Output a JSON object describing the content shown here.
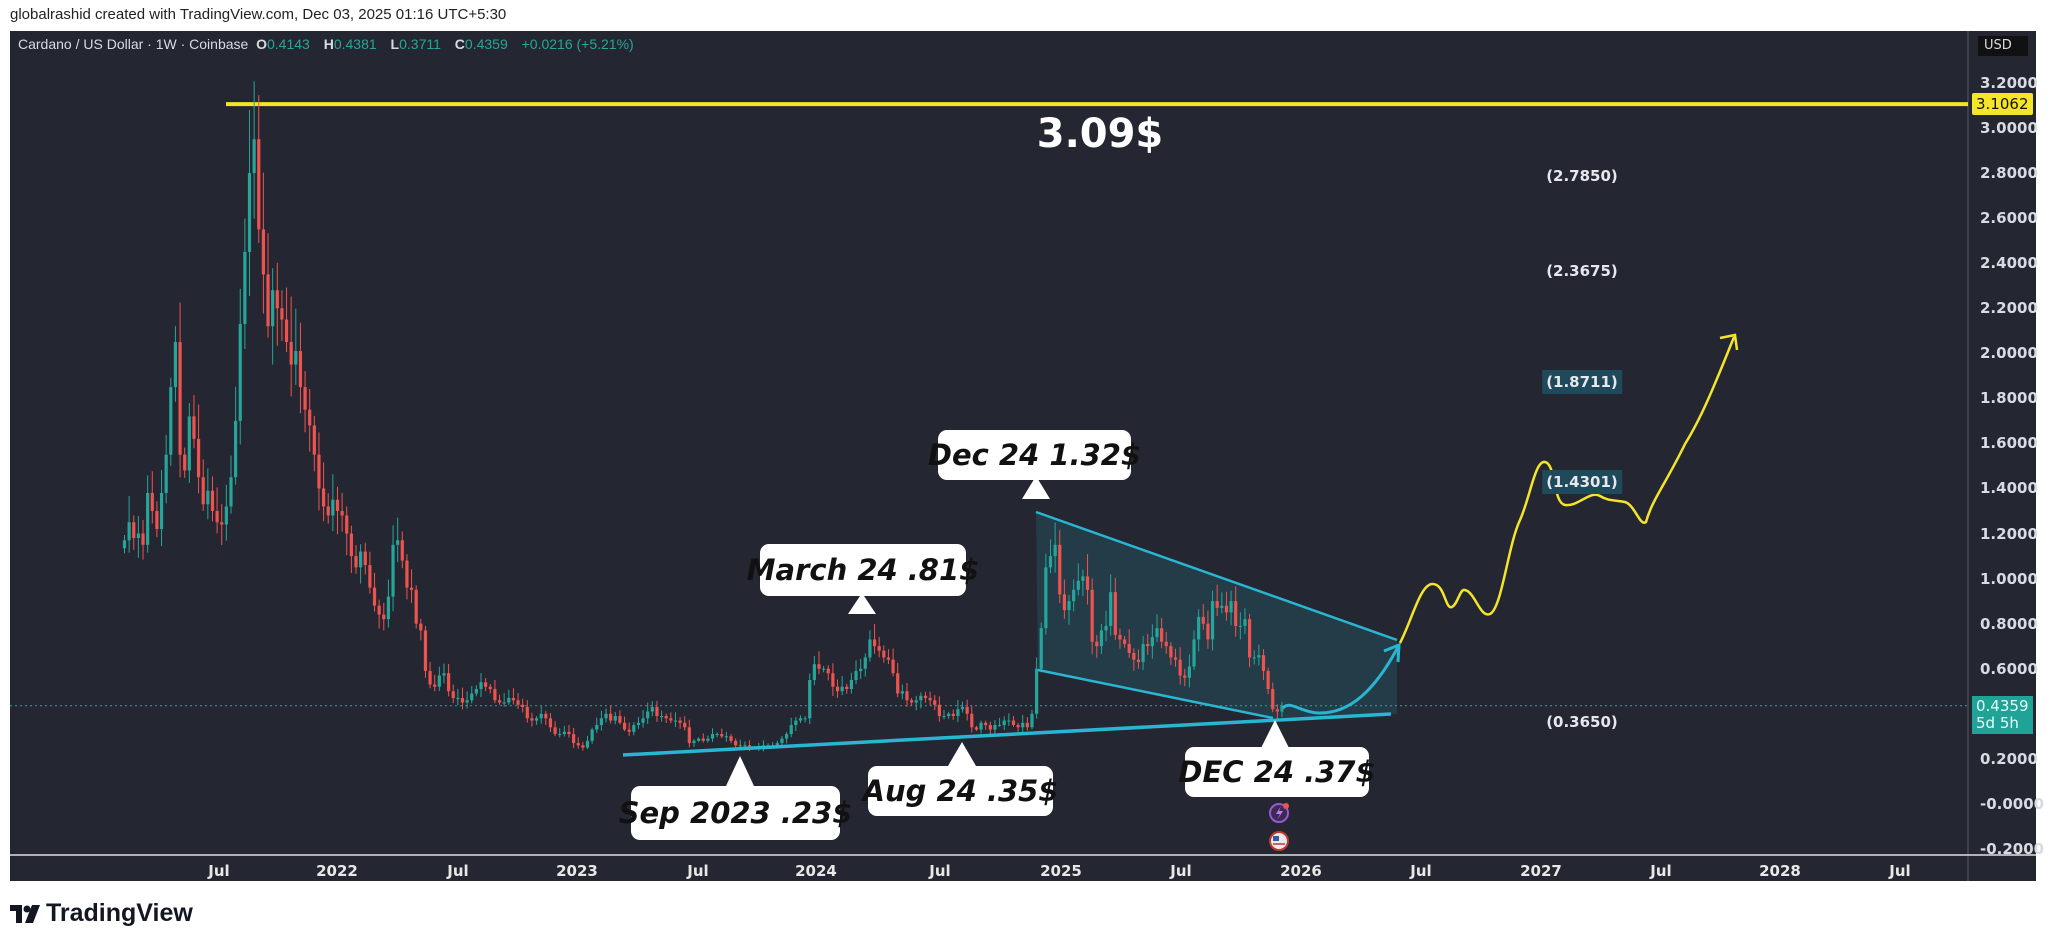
{
  "credit": "globalrashid created with TradingView.com, Dec 03, 2025 01:16 UTC+5:30",
  "legend": {
    "symbol": "Cardano / US Dollar · 1W · Coinbase",
    "o_label": "O",
    "o": "0.4143",
    "h_label": "H",
    "h": "0.4381",
    "l_label": "L",
    "l": "0.3711",
    "c_label": "C",
    "c": "0.4359",
    "change": "+0.0216 (+5.21%)"
  },
  "price_axis": {
    "currency": "USD",
    "ticks": [
      "3.2000",
      "3.0000",
      "2.8000",
      "2.6000",
      "2.4000",
      "2.2000",
      "2.0000",
      "1.8000",
      "1.6000",
      "1.4000",
      "1.2000",
      "1.0000",
      "0.8000",
      "0.6000",
      "0.2000",
      "-0.0000",
      "-0.2000"
    ],
    "high_tag": "3.1062",
    "last_price_tag": "0.4359",
    "countdown": "5d 5h"
  },
  "time_axis": {
    "ticks": [
      "Jul",
      "2022",
      "Jul",
      "2023",
      "Jul",
      "2024",
      "Jul",
      "2025",
      "Jul",
      "2026",
      "Jul",
      "2027",
      "Jul",
      "2028",
      "Jul"
    ]
  },
  "annotations": {
    "ath_text": "3.09$",
    "levels": [
      "(2.7850)",
      "(2.3675)",
      "(1.8711)",
      "(1.4301)",
      "(0.3650)"
    ],
    "callouts": [
      "Dec 24 1.32$",
      "March 24 .81$",
      "Sep 2023 .23$",
      "Aug 24 .35$",
      "DEC 24 .37$"
    ]
  },
  "footer": {
    "brand": "TradingView"
  },
  "colors": {
    "up": "#26a69a",
    "down": "#ef5350",
    "trendline": "#29b6d2",
    "projection": "#f5e52a",
    "background": "#242731"
  },
  "chart_data": {
    "type": "candlestick",
    "interval": "1W",
    "series_start": "2021-03",
    "series_end": "2025-12",
    "ylim": [
      -0.2,
      3.25
    ],
    "ath_level": 3.1062,
    "last_price": 0.4359,
    "weekly_close": [
      1.17,
      1.25,
      1.18,
      1.2,
      1.15,
      1.38,
      1.3,
      1.22,
      1.38,
      1.55,
      1.85,
      2.05,
      1.55,
      1.48,
      1.72,
      1.62,
      1.45,
      1.33,
      1.39,
      1.3,
      1.25,
      1.24,
      1.32,
      1.45,
      1.7,
      2.13,
      2.45,
      2.8,
      2.95,
      2.55,
      2.35,
      2.12,
      2.28,
      2.2,
      2.15,
      2.05,
      1.95,
      2.01,
      1.85,
      1.75,
      1.68,
      1.55,
      1.4,
      1.32,
      1.28,
      1.35,
      1.3,
      1.28,
      1.2,
      1.1,
      1.05,
      1.12,
      1.06,
      0.96,
      0.88,
      0.84,
      0.82,
      0.92,
      1.15,
      1.17,
      1.08,
      0.96,
      0.95,
      0.8,
      0.77,
      0.59,
      0.53,
      0.52,
      0.57,
      0.58,
      0.5,
      0.47,
      0.47,
      0.45,
      0.46,
      0.49,
      0.51,
      0.54,
      0.52,
      0.51,
      0.46,
      0.45,
      0.45,
      0.47,
      0.46,
      0.44,
      0.43,
      0.38,
      0.37,
      0.38,
      0.4,
      0.38,
      0.34,
      0.31,
      0.31,
      0.32,
      0.31,
      0.27,
      0.26,
      0.25,
      0.28,
      0.33,
      0.35,
      0.38,
      0.4,
      0.37,
      0.39,
      0.36,
      0.33,
      0.32,
      0.35,
      0.36,
      0.38,
      0.41,
      0.43,
      0.39,
      0.39,
      0.38,
      0.37,
      0.37,
      0.36,
      0.34,
      0.27,
      0.28,
      0.29,
      0.28,
      0.29,
      0.31,
      0.31,
      0.3,
      0.3,
      0.28,
      0.26,
      0.26,
      0.26,
      0.25,
      0.25,
      0.25,
      0.26,
      0.26,
      0.26,
      0.27,
      0.29,
      0.31,
      0.35,
      0.37,
      0.38,
      0.38,
      0.55,
      0.62,
      0.6,
      0.6,
      0.58,
      0.52,
      0.5,
      0.52,
      0.51,
      0.55,
      0.59,
      0.6,
      0.65,
      0.73,
      0.7,
      0.68,
      0.65,
      0.64,
      0.58,
      0.49,
      0.5,
      0.46,
      0.45,
      0.46,
      0.48,
      0.47,
      0.46,
      0.44,
      0.39,
      0.39,
      0.4,
      0.39,
      0.42,
      0.43,
      0.4,
      0.34,
      0.33,
      0.36,
      0.35,
      0.33,
      0.35,
      0.35,
      0.37,
      0.37,
      0.35,
      0.34,
      0.36,
      0.34,
      0.4,
      0.6,
      0.78,
      1.05,
      1.1,
      1.15,
      0.93,
      0.86,
      0.9,
      0.95,
      0.99,
      1.01,
      0.95,
      0.72,
      0.7,
      0.77,
      0.79,
      0.94,
      0.75,
      0.73,
      0.71,
      0.67,
      0.64,
      0.63,
      0.71,
      0.7,
      0.74,
      0.78,
      0.72,
      0.7,
      0.65,
      0.64,
      0.57,
      0.56,
      0.61,
      0.73,
      0.83,
      0.8,
      0.73,
      0.9,
      0.87,
      0.88,
      0.85,
      0.9,
      0.79,
      0.79,
      0.82,
      0.65,
      0.65,
      0.66,
      0.59,
      0.51,
      0.42,
      0.41,
      0.4359
    ]
  }
}
